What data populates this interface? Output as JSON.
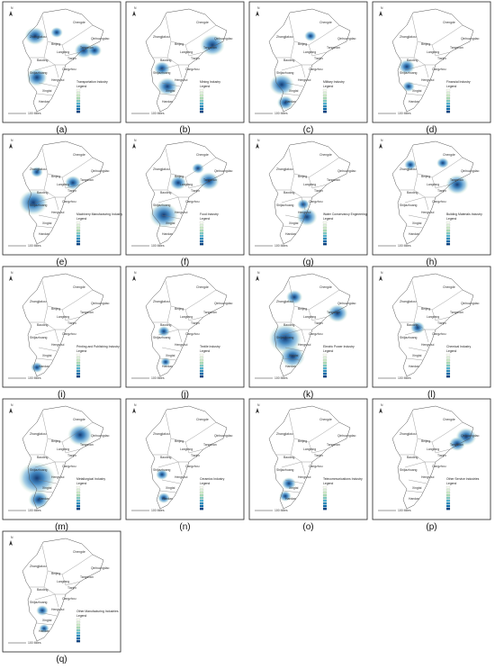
{
  "panels": [
    {
      "label": "(a)",
      "title": "Transportation Industry"
    },
    {
      "label": "(b)",
      "title": "Mining Industry"
    },
    {
      "label": "(c)",
      "title": "Military Industry"
    },
    {
      "label": "(d)",
      "title": "Financial Industry"
    },
    {
      "label": "(e)",
      "title": "Machinery Manufacturing Industry"
    },
    {
      "label": "(f)",
      "title": "Food Industry"
    },
    {
      "label": "(g)",
      "title": "Water Conservancy Engineering"
    },
    {
      "label": "(h)",
      "title": "Building Materials Industry"
    },
    {
      "label": "(i)",
      "title": "Printing and Publishing Industry"
    },
    {
      "label": "(j)",
      "title": "Textile Industry"
    },
    {
      "label": "(k)",
      "title": "Electric Power Industry"
    },
    {
      "label": "(l)",
      "title": "Chemical Industry"
    },
    {
      "label": "(m)",
      "title": "Metallurgical Industry"
    },
    {
      "label": "(n)",
      "title": "Ceramics Industry"
    },
    {
      "label": "(o)",
      "title": "Telecommunications Industry"
    },
    {
      "label": "(p)",
      "title": "Other Service Industries"
    },
    {
      "label": "(q)",
      "title": "Other Manufacturing Industries"
    }
  ],
  "legend_title": "Legend",
  "north": "N",
  "scale": "100 Miles",
  "cities": [
    "Zhangjiakou",
    "Chengde",
    "Beijing",
    "Langfang",
    "Tianjin",
    "Qinhuangdao",
    "Tangshan",
    "Baoding",
    "Cangzhou",
    "Shijiazhuang",
    "Hengshui",
    "Xingtai",
    "Handan"
  ]
}
